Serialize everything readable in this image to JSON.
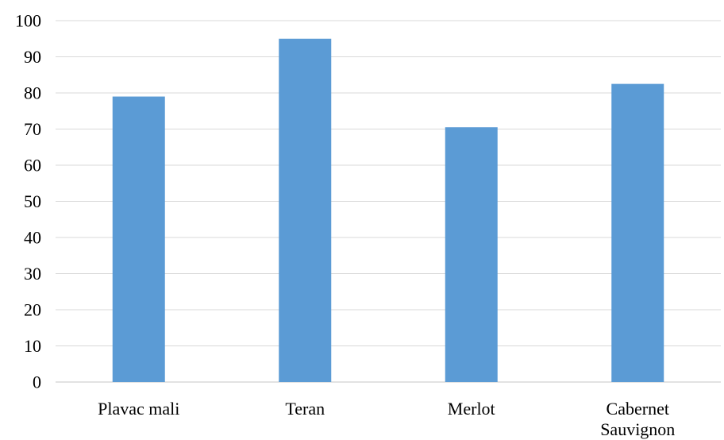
{
  "chart_data": {
    "type": "bar",
    "title": "",
    "xlabel": "",
    "ylabel": "",
    "categories": [
      "Plavac mali",
      "Teran",
      "Merlot",
      "Cabernet Sauvignon"
    ],
    "category_lines": [
      [
        "Plavac mali"
      ],
      [
        "Teran"
      ],
      [
        "Merlot"
      ],
      [
        "Cabernet",
        "Sauvignon"
      ]
    ],
    "values": [
      79,
      95,
      70.5,
      82.5
    ],
    "ylim": [
      0,
      100
    ],
    "yticks": [
      0,
      10,
      20,
      30,
      40,
      50,
      60,
      70,
      80,
      90,
      100
    ],
    "grid": true,
    "legend": "none",
    "bar_color": "#5b9bd5"
  }
}
